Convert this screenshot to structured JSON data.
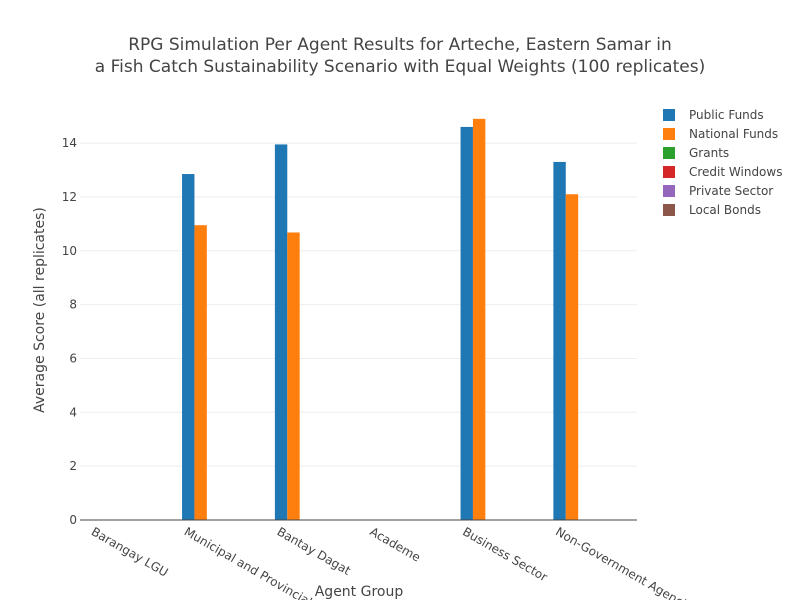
{
  "chart_data": {
    "type": "bar",
    "title": [
      "RPG Simulation Per Agent Results for Arteche, Eastern Samar in",
      "a Fish Catch Sustainability Scenario with Equal Weights (100 replicates)"
    ],
    "xlabel": "Agent Group",
    "ylabel": "Average Score (all replicates)",
    "ylim": [
      0,
      15.6
    ],
    "yticks": [
      0,
      2,
      4,
      6,
      8,
      10,
      12,
      14
    ],
    "grid": true,
    "legend_position": "top-right",
    "categories": [
      "Barangay LGU",
      "Municipal and Provincial Agy.",
      "Bantay Dagat",
      "Academe",
      "Business Sector",
      "Non-Government Agencies"
    ],
    "series": [
      {
        "name": "Public Funds",
        "color": "#1f77b4",
        "values": [
          0,
          12.85,
          13.95,
          0,
          14.6,
          13.3
        ]
      },
      {
        "name": "National Funds",
        "color": "#ff7f0e",
        "values": [
          0,
          10.95,
          10.68,
          0,
          14.9,
          12.1
        ]
      },
      {
        "name": "Grants",
        "color": "#2ca02c",
        "values": [
          0,
          0,
          0,
          0,
          0,
          0
        ]
      },
      {
        "name": "Credit Windows",
        "color": "#d62728",
        "values": [
          0,
          0,
          0,
          0,
          0,
          0
        ]
      },
      {
        "name": "Private Sector",
        "color": "#9467bd",
        "values": [
          0,
          0,
          0,
          0,
          0,
          0
        ]
      },
      {
        "name": "Local Bonds",
        "color": "#8c564b",
        "values": [
          0,
          0,
          0,
          0,
          0,
          0
        ]
      }
    ]
  }
}
